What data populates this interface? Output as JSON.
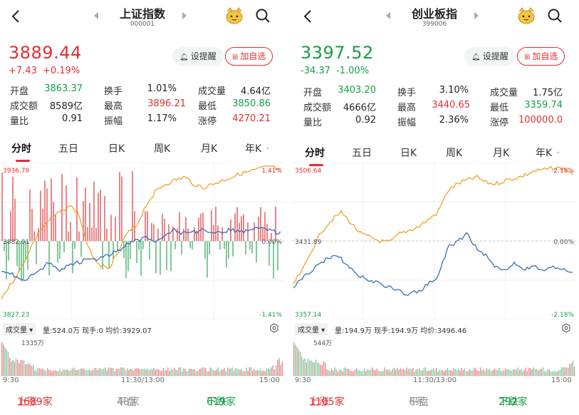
{
  "panels": [
    {
      "title": "上证指数",
      "code": "000001",
      "price": "3889.44",
      "change": "+7.43",
      "change_pct": "+0.19%",
      "trend": "up",
      "buttons": {
        "alert": "设提醒",
        "watchlist": "加自选"
      },
      "stats": [
        [
          {
            "label": "开盘",
            "value": "3863.37",
            "color": "green"
          },
          {
            "label": "换手",
            "value": "1.01%",
            "color": ""
          },
          {
            "label": "成交量",
            "value": "4.64亿",
            "color": ""
          }
        ],
        [
          {
            "label": "成交额",
            "value": "8589亿",
            "color": ""
          },
          {
            "label": "最高",
            "value": "3896.21",
            "color": "red"
          },
          {
            "label": "最低",
            "value": "3850.86",
            "color": "green"
          }
        ],
        [
          {
            "label": "量比",
            "value": "0.91",
            "color": ""
          },
          {
            "label": "振幅",
            "value": "1.17%",
            "color": ""
          },
          {
            "label": "涨停",
            "value": "4270.21",
            "color": "red"
          }
        ]
      ],
      "tabs": [
        "分时",
        "五日",
        "日K",
        "周K",
        "月K",
        "年K"
      ],
      "chart": {
        "high": "3936.79",
        "mid": "3882.01",
        "low": "3827.23",
        "pct_high": "1.41%",
        "pct_mid": "0.00%",
        "pct_low": "-1.41%"
      },
      "volume": {
        "label": "成交量",
        "amount": "量:524.0万",
        "current": "现手:0",
        "avg": "均价:3929.07",
        "max": "1335万"
      },
      "times": [
        "9:30",
        "11:30/13:00",
        "15:00"
      ],
      "market": {
        "up_label": "上涨",
        "up": "1689家",
        "flat_label": "平盘",
        "flat": "48家",
        "down_label": "下跌",
        "down": "619家"
      }
    },
    {
      "title": "创业板指",
      "code": "399006",
      "price": "3397.52",
      "change": "-34.37",
      "change_pct": "-1.00%",
      "trend": "down",
      "buttons": {
        "alert": "设提醒",
        "watchlist": "加自选"
      },
      "stats": [
        [
          {
            "label": "开盘",
            "value": "3403.20",
            "color": "green"
          },
          {
            "label": "换手",
            "value": "3.10%",
            "color": ""
          },
          {
            "label": "成交量",
            "value": "1.75亿",
            "color": ""
          }
        ],
        [
          {
            "label": "成交额",
            "value": "4666亿",
            "color": ""
          },
          {
            "label": "最高",
            "value": "3440.65",
            "color": "red"
          },
          {
            "label": "最低",
            "value": "3359.74",
            "color": "green"
          }
        ],
        [
          {
            "label": "量比",
            "value": "0.92",
            "color": ""
          },
          {
            "label": "振幅",
            "value": "2.36%",
            "color": ""
          },
          {
            "label": "涨停",
            "value": "100000.0",
            "color": "red"
          }
        ]
      ],
      "tabs": [
        "分时",
        "五日",
        "日K",
        "周K",
        "月K",
        "年K"
      ],
      "chart": {
        "high": "3506.64",
        "mid": "3431.89",
        "low": "3357.14",
        "pct_high": "2.18%",
        "pct_mid": "0.00%",
        "pct_low": "-2.18%"
      },
      "volume": {
        "label": "成交量",
        "amount": "量:194.9万",
        "current": "现手:194.9万",
        "avg": "均价:3496.46",
        "max": "544万"
      },
      "times": [
        "9:30",
        "11:30/13:00",
        "15:00"
      ],
      "market": {
        "up_label": "上涨",
        "up": "1105家",
        "flat_label": "平盘",
        "flat": "6家",
        "down_label": "下跌",
        "down": "292家"
      }
    }
  ],
  "colors": {
    "up": "#e03030",
    "down": "#169e45",
    "price_line": "#3a6fb5",
    "avg_line": "#f0a030"
  }
}
